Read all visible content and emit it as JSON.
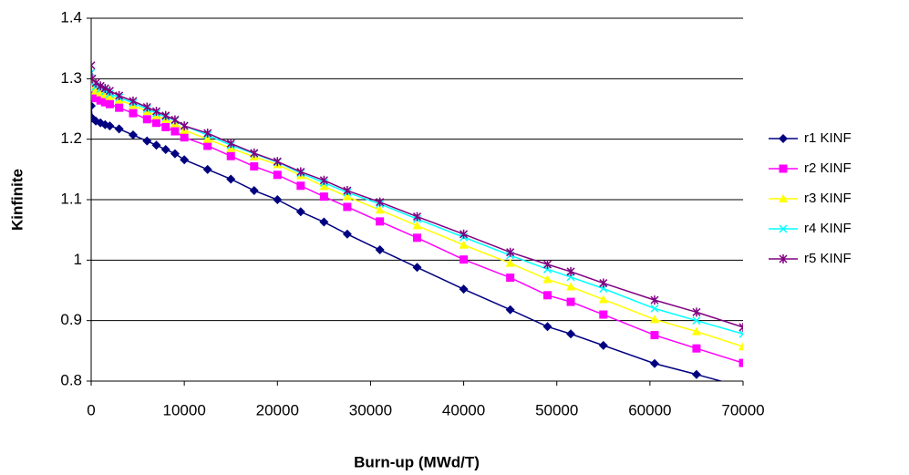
{
  "chart_data": {
    "type": "line",
    "x_label": "Burn-up (MWd/T)",
    "y_label": "Kinfinite",
    "x": [
      0,
      100,
      500,
      1000,
      1500,
      2000,
      3000,
      4500,
      6000,
      7000,
      8000,
      9000,
      10000,
      12500,
      15000,
      17500,
      20000,
      22500,
      25000,
      27500,
      31000,
      35000,
      40000,
      45000,
      49000,
      51500,
      55000,
      60500,
      65000,
      70000
    ],
    "series": [
      {
        "name": "r1 KINF",
        "color": "#000080",
        "marker": "diamond",
        "values": [
          1.255,
          1.235,
          1.23,
          1.227,
          1.224,
          1.222,
          1.217,
          1.207,
          1.197,
          1.19,
          1.183,
          1.176,
          1.166,
          1.15,
          1.134,
          1.115,
          1.1,
          1.08,
          1.063,
          1.043,
          1.017,
          0.988,
          0.952,
          0.918,
          0.89,
          0.878,
          0.859,
          0.829,
          0.811,
          0.79
        ]
      },
      {
        "name": "r2 KINF",
        "color": "#ff00ff",
        "marker": "square",
        "values": [
          1.28,
          1.272,
          1.268,
          1.264,
          1.261,
          1.258,
          1.252,
          1.243,
          1.233,
          1.227,
          1.22,
          1.213,
          1.203,
          1.189,
          1.172,
          1.155,
          1.141,
          1.123,
          1.105,
          1.088,
          1.064,
          1.037,
          1.001,
          0.971,
          0.942,
          0.931,
          0.91,
          0.876,
          0.854,
          0.83
        ]
      },
      {
        "name": "r3 KINF",
        "color": "#ffff00",
        "marker": "triangle",
        "values": [
          1.3,
          1.285,
          1.28,
          1.277,
          1.274,
          1.271,
          1.265,
          1.256,
          1.246,
          1.239,
          1.233,
          1.226,
          1.215,
          1.2,
          1.185,
          1.171,
          1.158,
          1.14,
          1.122,
          1.105,
          1.083,
          1.057,
          1.025,
          0.995,
          0.968,
          0.956,
          0.935,
          0.902,
          0.882,
          0.857
        ]
      },
      {
        "name": "r4 KINF",
        "color": "#00ffff",
        "marker": "x",
        "values": [
          1.31,
          1.292,
          1.287,
          1.283,
          1.279,
          1.275,
          1.269,
          1.26,
          1.25,
          1.243,
          1.237,
          1.231,
          1.222,
          1.207,
          1.19,
          1.176,
          1.162,
          1.144,
          1.128,
          1.112,
          1.093,
          1.068,
          1.038,
          1.008,
          0.985,
          0.972,
          0.953,
          0.92,
          0.9,
          0.878
        ]
      },
      {
        "name": "r5 KINF",
        "color": "#800080",
        "marker": "star",
        "values": [
          1.322,
          1.3,
          1.293,
          1.288,
          1.284,
          1.28,
          1.272,
          1.263,
          1.253,
          1.246,
          1.239,
          1.232,
          1.222,
          1.21,
          1.193,
          1.177,
          1.163,
          1.146,
          1.132,
          1.115,
          1.096,
          1.072,
          1.043,
          1.013,
          0.993,
          0.981,
          0.962,
          0.934,
          0.914,
          0.889
        ]
      }
    ],
    "xlim": [
      0,
      70000
    ],
    "xticks": [
      0,
      10000,
      20000,
      30000,
      40000,
      50000,
      60000,
      70000
    ],
    "ylim": [
      0.8,
      1.4
    ],
    "yticks": [
      0.8,
      0.9,
      1,
      1.1,
      1.2,
      1.3,
      1.4
    ],
    "grid": true,
    "legend": "right"
  }
}
